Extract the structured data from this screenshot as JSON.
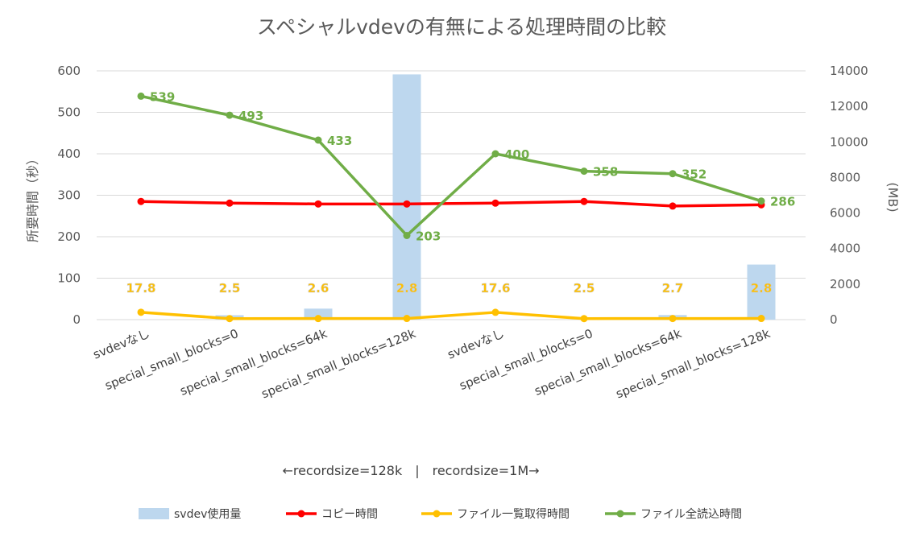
{
  "chart_data": {
    "type": "combo",
    "title": "スペシャルvdevの有無による処理時間の比較",
    "categories": [
      "svdevなし",
      "special_small_blocks=0",
      "special_small_blocks=64k",
      "special_small_blocks=128k",
      "svdevなし",
      "special_small_blocks=0",
      "special_small_blocks=64k",
      "special_small_blocks=128k"
    ],
    "ylabel": "所要時間（秒）",
    "y2label": "(MB)",
    "ylim": [
      0,
      600
    ],
    "y2lim": [
      0,
      14000
    ],
    "yticks": [
      "0",
      "100",
      "200",
      "300",
      "400",
      "500",
      "600"
    ],
    "y2ticks": [
      "0",
      "2000",
      "4000",
      "6000",
      "8000",
      "10000",
      "12000",
      "14000"
    ],
    "grid": true,
    "legend_position": "bottom",
    "series": [
      {
        "name": "svdev使用量",
        "type": "bar",
        "axis": "secondary",
        "color": "#bdd7ee",
        "values": [
          0,
          250,
          620,
          13800,
          0,
          0,
          260,
          3100
        ]
      },
      {
        "name": "コピー時間",
        "type": "line",
        "axis": "primary",
        "color": "#ff0000",
        "values": [
          285,
          281,
          279,
          279,
          281,
          285,
          274,
          277
        ]
      },
      {
        "name": "ファイル一覧取得時間",
        "type": "line",
        "axis": "primary",
        "color": "#ffc000",
        "values": [
          17.8,
          2.5,
          2.6,
          2.8,
          17.6,
          2.5,
          2.7,
          2.8
        ],
        "labels": [
          "17.8",
          "2.5",
          "2.6",
          "2.8",
          "17.6",
          "2.5",
          "2.7",
          "2.8"
        ]
      },
      {
        "name": "ファイル全読込時間",
        "type": "line",
        "axis": "primary",
        "color": "#70ad47",
        "values": [
          539,
          493,
          433,
          203,
          400,
          358,
          352,
          286
        ],
        "labels": [
          "539",
          "493",
          "433",
          "203",
          "400",
          "358",
          "352",
          "286"
        ]
      }
    ],
    "annotation": "←recordsize=128k　|　recordsize=1M→"
  }
}
